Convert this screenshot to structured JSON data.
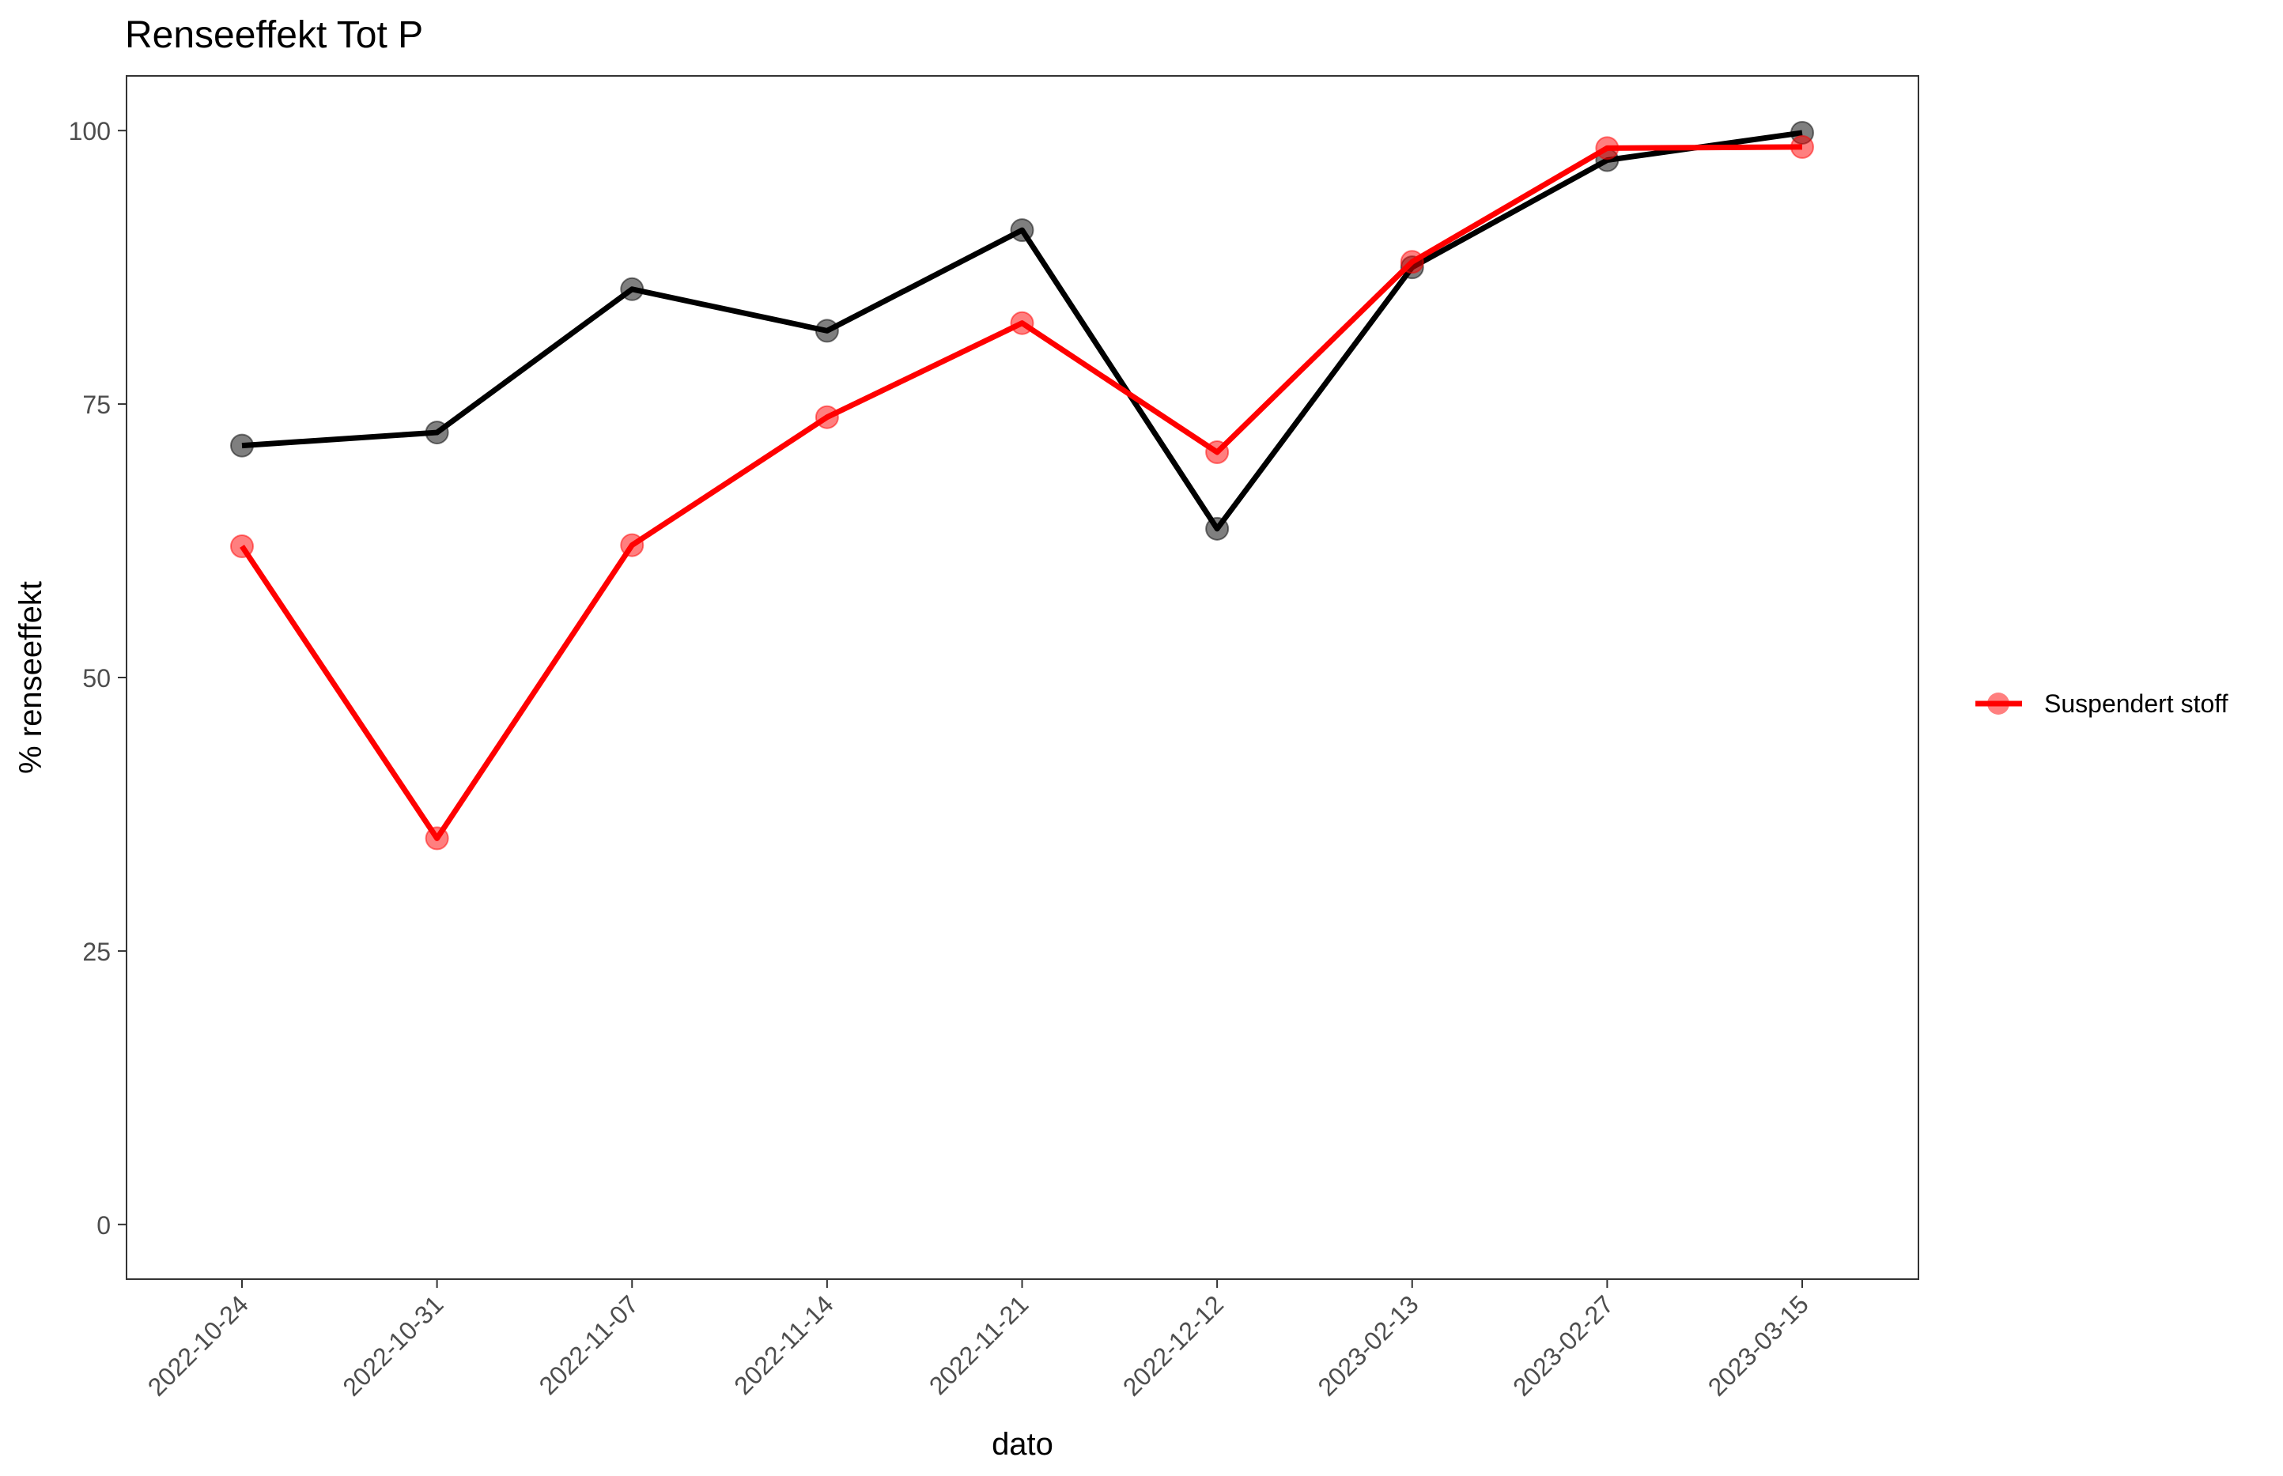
{
  "chart_data": {
    "type": "line",
    "title": "Renseeffekt Tot P",
    "xlabel": "dato",
    "ylabel": "% renseeffekt",
    "categories": [
      "2022-10-24",
      "2022-10-31",
      "2022-11-07",
      "2022-11-14",
      "2022-11-21",
      "2022-12-12",
      "2023-02-13",
      "2023-02-27",
      "2023-03-15"
    ],
    "y_ticks": [
      "0",
      "25",
      "50",
      "75",
      "100"
    ],
    "ylim": [
      -5,
      105
    ],
    "grid": false,
    "legend_position": "right",
    "series": [
      {
        "color": "#000000",
        "values": [
          71.2,
          72.4,
          85.5,
          81.7,
          90.9,
          63.6,
          87.5,
          97.3,
          99.8
        ]
      },
      {
        "name": "Suspendert stoff",
        "color": "#ff0000",
        "values": [
          62.0,
          35.3,
          62.1,
          73.8,
          82.4,
          70.6,
          88.0,
          98.4,
          98.5
        ]
      }
    ]
  }
}
